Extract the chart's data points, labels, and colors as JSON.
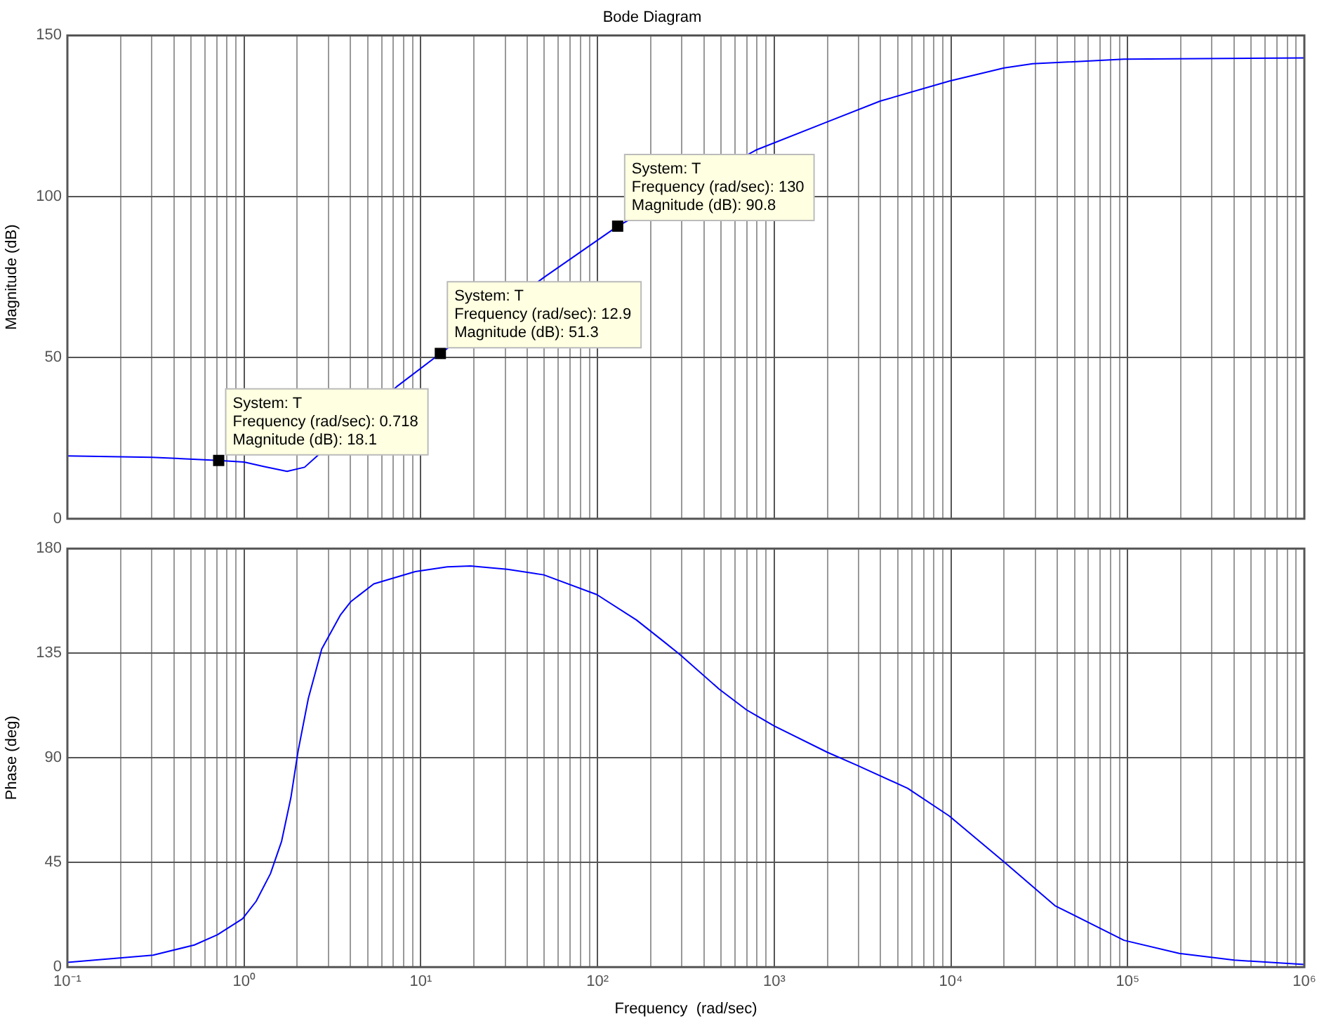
{
  "chart_data": [
    {
      "type": "line",
      "title": "Bode Diagram",
      "ylabel": "Magnitude (dB)",
      "log": "x",
      "grid": true,
      "tick_labels": "y",
      "color": "#0000ff",
      "x": [
        0.1,
        0.3,
        0.718,
        1.0,
        1.3,
        1.75,
        2.2,
        2.64,
        3,
        5,
        7.3,
        12.9,
        30,
        50,
        130,
        787,
        1982,
        3972,
        9780,
        20000,
        29000,
        95000,
        1000000
      ],
      "values": [
        19.5,
        19.1,
        18.1,
        17.6,
        16.2,
        14.7,
        16,
        19.9,
        null,
        null,
        41,
        51.3,
        null,
        75,
        90.8,
        114.4,
        123.1,
        129.6,
        135.8,
        139.9,
        141.2,
        142.6,
        143
      ],
      "xlim": [
        0.1,
        1000000
      ],
      "xticks": [
        {
          "value": 0.1,
          "label": null
        },
        {
          "value": 0.2,
          "label": null
        },
        {
          "value": 0.3,
          "label": null
        },
        {
          "value": 0.4,
          "label": null
        },
        {
          "value": 0.5,
          "label": null
        },
        {
          "value": 0.6,
          "label": null
        },
        {
          "value": 0.7,
          "label": null
        },
        {
          "value": 0.8,
          "label": null
        },
        {
          "value": 0.9,
          "label": null
        },
        {
          "value": 1,
          "label": null
        },
        {
          "value": 2,
          "label": null
        },
        {
          "value": 3,
          "label": null
        },
        {
          "value": 4,
          "label": null
        },
        {
          "value": 5,
          "label": null
        },
        {
          "value": 6,
          "label": null
        },
        {
          "value": 7,
          "label": null
        },
        {
          "value": 8,
          "label": null
        },
        {
          "value": 9,
          "label": null
        },
        {
          "value": 10,
          "label": null
        },
        {
          "value": 20,
          "label": null
        },
        {
          "value": 30,
          "label": null
        },
        {
          "value": 40,
          "label": null
        },
        {
          "value": 50,
          "label": null
        },
        {
          "value": 60,
          "label": null
        },
        {
          "value": 70,
          "label": null
        },
        {
          "value": 80,
          "label": null
        },
        {
          "value": 90,
          "label": null
        },
        {
          "value": 100,
          "label": null
        },
        {
          "value": 200,
          "label": null
        },
        {
          "value": 300,
          "label": null
        },
        {
          "value": 400,
          "label": null
        },
        {
          "value": 500,
          "label": null
        },
        {
          "value": 600,
          "label": null
        },
        {
          "value": 700,
          "label": null
        },
        {
          "value": 800,
          "label": null
        },
        {
          "value": 900,
          "label": null
        },
        {
          "value": 1000,
          "label": null
        },
        {
          "value": 2000,
          "label": null
        },
        {
          "value": 3000,
          "label": null
        },
        {
          "value": 4000,
          "label": null
        },
        {
          "value": 5000,
          "label": null
        },
        {
          "value": 6000,
          "label": null
        },
        {
          "value": 7000,
          "label": null
        },
        {
          "value": 8000,
          "label": null
        },
        {
          "value": 9000,
          "label": null
        },
        {
          "value": 10000,
          "label": null
        },
        {
          "value": 20000,
          "label": null
        },
        {
          "value": 30000,
          "label": null
        },
        {
          "value": 40000,
          "label": null
        },
        {
          "value": 50000,
          "label": null
        },
        {
          "value": 60000,
          "label": null
        },
        {
          "value": 70000,
          "label": null
        },
        {
          "value": 80000,
          "label": null
        },
        {
          "value": 90000,
          "label": null
        },
        {
          "value": 100000,
          "label": null
        },
        {
          "value": 200000,
          "label": null
        },
        {
          "value": 300000,
          "label": null
        },
        {
          "value": 400000,
          "label": null
        },
        {
          "value": 500000,
          "label": null
        },
        {
          "value": 600000,
          "label": null
        },
        {
          "value": 700000,
          "label": null
        },
        {
          "value": 800000,
          "label": null
        },
        {
          "value": 900000,
          "label": null
        },
        {
          "value": 1000000,
          "label": null
        }
      ],
      "ylim": [
        0,
        150
      ],
      "yticks": [
        0,
        50,
        100,
        150
      ],
      "annotations": [
        {
          "text": "System: T\nFrequency (rad/sec): 0.718\nMagnitude (dB): 18.1",
          "x": 0.718,
          "y": 18.1
        },
        {
          "text": "System: T\nFrequency (rad/sec): 12.9\nMagnitude (dB): 51.3",
          "x": 12.9,
          "y": 51.3
        },
        {
          "text": "System: T\nFrequency (rad/sec): 130\nMagnitude (dB): 90.8",
          "x": 130,
          "y": 90.8
        }
      ]
    },
    {
      "type": "line",
      "xlabel": "Frequency  (rad/sec)",
      "ylabel": "Phase (deg)",
      "log": "x",
      "grid": true,
      "color": "#0000ff",
      "x": [
        0.1,
        0.305,
        0.523,
        0.707,
        0.98,
        1.17,
        1.41,
        1.63,
        1.84,
        2.02,
        2.31,
        2.75,
        3.5,
        4.02,
        5.42,
        9.3,
        14.1,
        19.1,
        30.9,
        49.6,
        99.1,
        166,
        237,
        293,
        487,
        698,
        1000,
        1995,
        2944,
        5690,
        9780,
        20000,
        38800,
        95500,
        196000,
        400000,
        1000000
      ],
      "values": [
        2.0,
        5.1,
        9.5,
        13.9,
        20.8,
        28.3,
        40.2,
        54.1,
        72.9,
        92.8,
        115.6,
        136.8,
        151.3,
        157.2,
        164.8,
        170.1,
        172.1,
        172.5,
        171.1,
        168.7,
        160.2,
        149.3,
        140.0,
        134.4,
        119.6,
        110.6,
        103.7,
        92.4,
        86.8,
        76.9,
        65.0,
        45.2,
        26.4,
        11.5,
        5.9,
        3.0,
        1.1
      ],
      "xlim": [
        0.1,
        1000000
      ],
      "xticks": [
        {
          "value": 0.1,
          "label": "10⁻¹"
        },
        {
          "value": 0.2,
          "label": null
        },
        {
          "value": 0.3,
          "label": null
        },
        {
          "value": 0.4,
          "label": null
        },
        {
          "value": 0.5,
          "label": null
        },
        {
          "value": 0.6,
          "label": null
        },
        {
          "value": 0.7,
          "label": null
        },
        {
          "value": 0.8,
          "label": null
        },
        {
          "value": 0.9,
          "label": null
        },
        {
          "value": 1,
          "label": "10⁰"
        },
        {
          "value": 2,
          "label": null
        },
        {
          "value": 3,
          "label": null
        },
        {
          "value": 4,
          "label": null
        },
        {
          "value": 5,
          "label": null
        },
        {
          "value": 6,
          "label": null
        },
        {
          "value": 7,
          "label": null
        },
        {
          "value": 8,
          "label": null
        },
        {
          "value": 9,
          "label": null
        },
        {
          "value": 10,
          "label": "10¹"
        },
        {
          "value": 20,
          "label": null
        },
        {
          "value": 30,
          "label": null
        },
        {
          "value": 40,
          "label": null
        },
        {
          "value": 50,
          "label": null
        },
        {
          "value": 60,
          "label": null
        },
        {
          "value": 70,
          "label": null
        },
        {
          "value": 80,
          "label": null
        },
        {
          "value": 90,
          "label": null
        },
        {
          "value": 100,
          "label": "10²"
        },
        {
          "value": 200,
          "label": null
        },
        {
          "value": 300,
          "label": null
        },
        {
          "value": 400,
          "label": null
        },
        {
          "value": 500,
          "label": null
        },
        {
          "value": 600,
          "label": null
        },
        {
          "value": 700,
          "label": null
        },
        {
          "value": 800,
          "label": null
        },
        {
          "value": 900,
          "label": null
        },
        {
          "value": 1000,
          "label": "10³"
        },
        {
          "value": 2000,
          "label": null
        },
        {
          "value": 3000,
          "label": null
        },
        {
          "value": 4000,
          "label": null
        },
        {
          "value": 5000,
          "label": null
        },
        {
          "value": 6000,
          "label": null
        },
        {
          "value": 7000,
          "label": null
        },
        {
          "value": 8000,
          "label": null
        },
        {
          "value": 9000,
          "label": null
        },
        {
          "value": 10000,
          "label": "10⁴"
        },
        {
          "value": 20000,
          "label": null
        },
        {
          "value": 30000,
          "label": null
        },
        {
          "value": 40000,
          "label": null
        },
        {
          "value": 50000,
          "label": null
        },
        {
          "value": 60000,
          "label": null
        },
        {
          "value": 70000,
          "label": null
        },
        {
          "value": 80000,
          "label": null
        },
        {
          "value": 90000,
          "label": null
        },
        {
          "value": 100000,
          "label": "10⁵"
        },
        {
          "value": 200000,
          "label": null
        },
        {
          "value": 300000,
          "label": null
        },
        {
          "value": 400000,
          "label": null
        },
        {
          "value": 500000,
          "label": null
        },
        {
          "value": 600000,
          "label": null
        },
        {
          "value": 700000,
          "label": null
        },
        {
          "value": 800000,
          "label": null
        },
        {
          "value": 900000,
          "label": null
        },
        {
          "value": 1000000,
          "label": "10⁶"
        }
      ],
      "ylim": [
        0,
        180
      ],
      "yticks": [
        0,
        45,
        90,
        135,
        180
      ]
    }
  ]
}
